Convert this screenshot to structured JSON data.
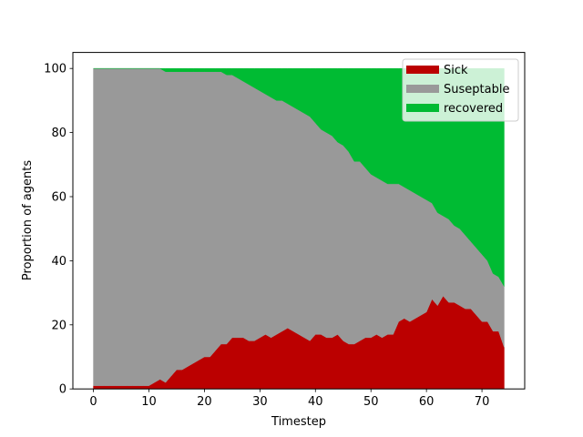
{
  "chart_data": {
    "type": "area",
    "stacked": true,
    "xlabel": "Timestep",
    "ylabel": "Proportion of agents",
    "xlim": [
      -3.7,
      77.7
    ],
    "ylim": [
      0,
      105
    ],
    "xticks": [
      0,
      10,
      20,
      30,
      40,
      50,
      60,
      70
    ],
    "yticks": [
      0,
      20,
      40,
      60,
      80,
      100
    ],
    "legend_position": "top-right",
    "x": [
      0,
      1,
      2,
      3,
      4,
      5,
      6,
      7,
      8,
      9,
      10,
      11,
      12,
      13,
      14,
      15,
      16,
      17,
      18,
      19,
      20,
      21,
      22,
      23,
      24,
      25,
      26,
      27,
      28,
      29,
      30,
      31,
      32,
      33,
      34,
      35,
      36,
      37,
      38,
      39,
      40,
      41,
      42,
      43,
      44,
      45,
      46,
      47,
      48,
      49,
      50,
      51,
      52,
      53,
      54,
      55,
      56,
      57,
      58,
      59,
      60,
      61,
      62,
      63,
      64,
      65,
      66,
      67,
      68,
      69,
      70,
      71,
      72,
      73,
      74
    ],
    "series": [
      {
        "name": "Sick",
        "color": "#bb0000",
        "values": [
          1,
          1,
          1,
          1,
          1,
          1,
          1,
          1,
          1,
          1,
          1,
          2,
          3,
          2,
          4,
          6,
          6,
          7,
          8,
          9,
          10,
          10,
          12,
          14,
          14,
          16,
          16,
          16,
          15,
          15,
          16,
          17,
          16,
          17,
          18,
          19,
          18,
          17,
          16,
          15,
          17,
          17,
          16,
          16,
          17,
          15,
          14,
          14,
          15,
          16,
          16,
          17,
          16,
          17,
          17,
          21,
          22,
          21,
          22,
          23,
          24,
          28,
          26,
          29,
          27,
          27,
          26,
          25,
          25,
          23,
          21,
          21,
          18,
          18,
          13
        ]
      },
      {
        "name": "Suseptable",
        "color": "#999999",
        "values": [
          99,
          99,
          99,
          99,
          99,
          99,
          99,
          99,
          99,
          99,
          99,
          98,
          97,
          97,
          95,
          93,
          93,
          92,
          91,
          90,
          89,
          89,
          87,
          85,
          84,
          82,
          81,
          80,
          80,
          79,
          77,
          75,
          75,
          73,
          72,
          70,
          70,
          70,
          70,
          70,
          66,
          64,
          64,
          63,
          60,
          61,
          60,
          57,
          56,
          53,
          51,
          49,
          49,
          47,
          47,
          43,
          41,
          41,
          39,
          37,
          35,
          30,
          29,
          25,
          26,
          24,
          24,
          23,
          21,
          21,
          21,
          19,
          18,
          17,
          19
        ]
      },
      {
        "name": "recovered",
        "color": "#00bb33",
        "values": [
          0,
          0,
          0,
          0,
          0,
          0,
          0,
          0,
          0,
          0,
          0,
          0,
          0,
          1,
          1,
          1,
          1,
          1,
          1,
          1,
          1,
          1,
          1,
          1,
          2,
          2,
          3,
          4,
          5,
          6,
          7,
          8,
          9,
          10,
          10,
          11,
          12,
          13,
          14,
          15,
          17,
          19,
          20,
          21,
          23,
          24,
          26,
          29,
          29,
          31,
          33,
          34,
          35,
          36,
          36,
          36,
          37,
          38,
          39,
          40,
          41,
          42,
          45,
          46,
          47,
          49,
          50,
          52,
          54,
          56,
          58,
          60,
          64,
          65,
          68
        ]
      }
    ]
  }
}
